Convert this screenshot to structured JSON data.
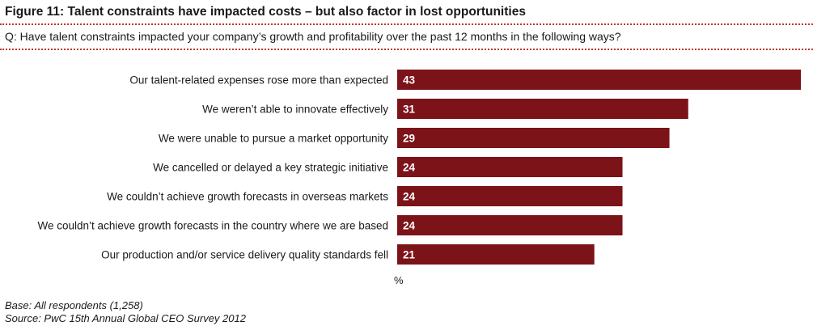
{
  "figure": {
    "title": "Figure 11: Talent constraints have impacted costs – but also factor in lost opportunities",
    "question": "Q: Have talent constraints impacted your company’s growth and profitability over the past 12 months in the following ways?"
  },
  "chart_data": {
    "type": "bar",
    "orientation": "horizontal",
    "categories": [
      "Our talent-related expenses rose more than expected",
      "We weren’t able to innovate effectively",
      "We were unable to pursue a market opportunity",
      "We cancelled or delayed a key strategic initiative",
      "We couldn’t achieve growth forecasts in overseas markets",
      "We couldn’t achieve growth forecasts in the country where we are based",
      "Our production and/or service delivery quality standards fell"
    ],
    "values": [
      43,
      31,
      29,
      24,
      24,
      24,
      21
    ],
    "xlabel": "%",
    "xlim": [
      0,
      43
    ],
    "bar_color": "#7b1319",
    "data_label_color": "#ffffff",
    "grid": false,
    "legend": "none"
  },
  "footnotes": {
    "base": "Base: All respondents (1,258)",
    "source": "Source: PwC 15th Annual Global CEO Survey 2012"
  }
}
